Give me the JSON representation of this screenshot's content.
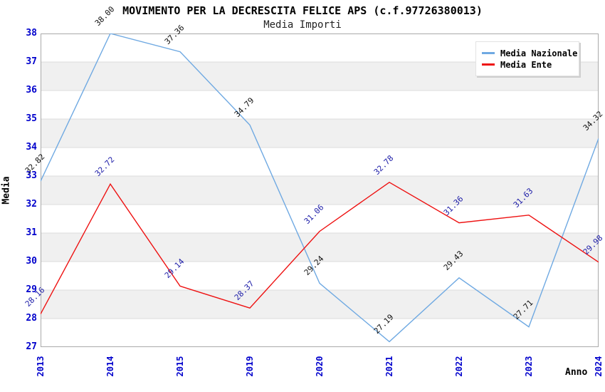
{
  "chart_data": {
    "type": "line",
    "title": "MOVIMENTO PER LA DECRESCITA FELICE APS (c.f.97726380013)",
    "subtitle": "Media Importi",
    "xlabel": "Anno",
    "ylabel": "Media",
    "categories": [
      "2013",
      "2014",
      "2015",
      "2019",
      "2020",
      "2021",
      "2022",
      "2023",
      "2024"
    ],
    "ylim": [
      27,
      38
    ],
    "ytick_step": 1,
    "yticks": [
      27,
      28,
      29,
      30,
      31,
      32,
      33,
      34,
      35,
      36,
      37,
      38
    ],
    "grid": "horizontal-bands",
    "legend_position": "top-right",
    "series": [
      {
        "name": "Media Nazionale",
        "color": "#6FA9E2",
        "label_color": "#111111",
        "values": [
          32.82,
          38.0,
          37.36,
          34.79,
          29.24,
          27.19,
          29.43,
          27.71,
          34.32
        ]
      },
      {
        "name": "Media Ente",
        "color": "#EE1111",
        "label_color": "#1D1DA8",
        "values": [
          28.16,
          32.72,
          29.14,
          28.37,
          31.06,
          32.78,
          31.36,
          31.63,
          29.98
        ]
      }
    ],
    "colors": {
      "tick_label": "#0000CC",
      "band_gray": "#F0F0F0",
      "band_white": "#FFFFFF",
      "gridline": "#DCDCDC",
      "plot_border": "#AAAAAA",
      "title": "#000000",
      "subtitle": "#222222"
    }
  }
}
